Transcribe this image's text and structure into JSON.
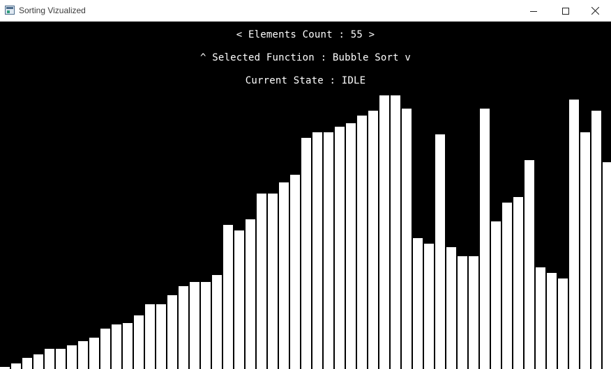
{
  "window": {
    "title": "Sorting Vizualized"
  },
  "hud": {
    "elements_line": {
      "prefix": "< ",
      "label": "Elements Count : ",
      "value": "55",
      "suffix": " >"
    },
    "function_line": {
      "prefix": "^ ",
      "label": "Selected Function : ",
      "value": "Bubble Sort",
      "suffix": " v"
    },
    "state_line": {
      "prefix": "",
      "label": "Current State : ",
      "value": "IDLE",
      "suffix": ""
    }
  },
  "colors": {
    "background": "#000000",
    "bar": "#ffffff",
    "hud_text": "#ffffff"
  },
  "chart_data": {
    "type": "bar",
    "title": "",
    "values": [
      1,
      3,
      6,
      8,
      11,
      11,
      13,
      15,
      17,
      22,
      24,
      25,
      29,
      35,
      35,
      40,
      45,
      47,
      47,
      51,
      78,
      75,
      81,
      95,
      95,
      101,
      105,
      125,
      128,
      128,
      131,
      133,
      137,
      140,
      148,
      148,
      141,
      71,
      68,
      127,
      66,
      61,
      61,
      141,
      80,
      90,
      93,
      113,
      55,
      52,
      49,
      146,
      128,
      140,
      112
    ],
    "ylim": [
      0,
      150
    ],
    "xlabel": "",
    "ylabel": ""
  }
}
